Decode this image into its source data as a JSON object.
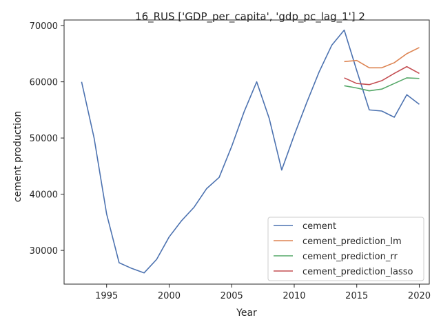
{
  "chart_data": {
    "type": "line",
    "title": "16_RUS ['GDP_per_capita', 'gdp_pc_lag_1'] 2",
    "xlabel": "Year",
    "ylabel": "cement production",
    "xlim": [
      1991.6,
      2020.8
    ],
    "ylim": [
      24000,
      71000
    ],
    "xticks": [
      1995,
      2000,
      2005,
      2010,
      2015,
      2020
    ],
    "yticks": [
      30000,
      40000,
      50000,
      60000,
      70000
    ],
    "grid": false,
    "legend_position": "lower right",
    "series": [
      {
        "name": "cement",
        "color": "#4c72b0",
        "x": [
          1993,
          1994,
          1995,
          1996,
          1997,
          1998,
          1999,
          2000,
          2001,
          2002,
          2003,
          2004,
          2005,
          2006,
          2007,
          2008,
          2009,
          2010,
          2011,
          2012,
          2013,
          2014,
          2015,
          2016,
          2017,
          2018,
          2019,
          2020
        ],
        "y": [
          60000,
          50000,
          36500,
          27800,
          26800,
          26000,
          28400,
          32400,
          35300,
          37700,
          41000,
          43000,
          48500,
          54700,
          60000,
          53500,
          44300,
          50500,
          56300,
          61800,
          66500,
          69200,
          62000,
          55000,
          54800,
          53700,
          57700,
          56000
        ]
      },
      {
        "name": "cement_prediction_lm",
        "color": "#dd8452",
        "x": [
          2014,
          2015,
          2016,
          2017,
          2018,
          2019,
          2020
        ],
        "y": [
          63600,
          63800,
          62500,
          62500,
          63400,
          65000,
          66100
        ]
      },
      {
        "name": "cement_prediction_rr",
        "color": "#55a868",
        "x": [
          2014,
          2015,
          2016,
          2017,
          2018,
          2019,
          2020
        ],
        "y": [
          59300,
          58900,
          58400,
          58700,
          59700,
          60700,
          60600
        ]
      },
      {
        "name": "cement_prediction_lasso",
        "color": "#c44e52",
        "x": [
          2014,
          2015,
          2016,
          2017,
          2018,
          2019,
          2020
        ],
        "y": [
          60700,
          59700,
          59500,
          60200,
          61500,
          62700,
          61500
        ]
      }
    ]
  }
}
